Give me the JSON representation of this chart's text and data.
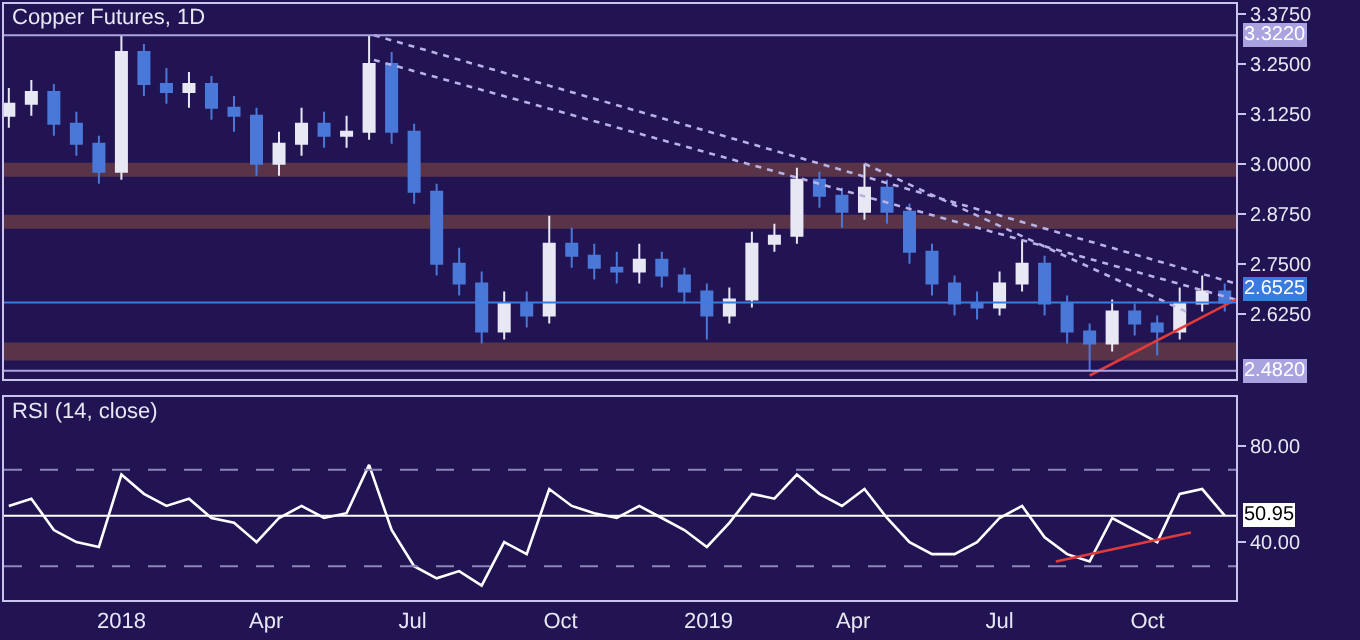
{
  "chart_data": [
    {
      "type": "candlestick",
      "title": "Copper Futures, 1D",
      "x": [
        "2017-10-23",
        "2017-11-06",
        "2017-11-20",
        "2017-12-04",
        "2017-12-18",
        "2018-01-01",
        "2018-01-15",
        "2018-01-29",
        "2018-02-12",
        "2018-02-26",
        "2018-03-12",
        "2018-03-26",
        "2018-04-09",
        "2018-04-23",
        "2018-05-07",
        "2018-05-21",
        "2018-06-04",
        "2018-06-18",
        "2018-07-02",
        "2018-07-16",
        "2018-07-30",
        "2018-08-13",
        "2018-08-27",
        "2018-09-10",
        "2018-09-24",
        "2018-10-08",
        "2018-10-22",
        "2018-11-05",
        "2018-11-19",
        "2018-12-03",
        "2018-12-17",
        "2018-12-31",
        "2019-01-14",
        "2019-01-28",
        "2019-02-11",
        "2019-02-25",
        "2019-03-11",
        "2019-03-25",
        "2019-04-08",
        "2019-04-22",
        "2019-05-06",
        "2019-05-20",
        "2019-06-03",
        "2019-06-17",
        "2019-07-01",
        "2019-07-15",
        "2019-07-29",
        "2019-08-12",
        "2019-08-26",
        "2019-09-09",
        "2019-09-23",
        "2019-10-07",
        "2019-10-21",
        "2019-11-04",
        "2019-11-18"
      ],
      "ohlc": [
        [
          3.12,
          3.19,
          3.09,
          3.15
        ],
        [
          3.15,
          3.21,
          3.12,
          3.18
        ],
        [
          3.18,
          3.2,
          3.07,
          3.1
        ],
        [
          3.1,
          3.13,
          3.02,
          3.05
        ],
        [
          3.05,
          3.07,
          2.95,
          2.98
        ],
        [
          2.98,
          3.322,
          2.96,
          3.28
        ],
        [
          3.28,
          3.3,
          3.17,
          3.2
        ],
        [
          3.2,
          3.24,
          3.15,
          3.18
        ],
        [
          3.18,
          3.23,
          3.14,
          3.2
        ],
        [
          3.2,
          3.22,
          3.11,
          3.14
        ],
        [
          3.14,
          3.17,
          3.08,
          3.12
        ],
        [
          3.12,
          3.14,
          2.97,
          3.0
        ],
        [
          3.0,
          3.08,
          2.97,
          3.05
        ],
        [
          3.05,
          3.14,
          3.02,
          3.1
        ],
        [
          3.1,
          3.13,
          3.04,
          3.07
        ],
        [
          3.07,
          3.12,
          3.04,
          3.08
        ],
        [
          3.08,
          3.32,
          3.06,
          3.25
        ],
        [
          3.25,
          3.28,
          3.05,
          3.08
        ],
        [
          3.08,
          3.1,
          2.9,
          2.93
        ],
        [
          2.93,
          2.95,
          2.72,
          2.75
        ],
        [
          2.75,
          2.79,
          2.67,
          2.7
        ],
        [
          2.7,
          2.73,
          2.55,
          2.58
        ],
        [
          2.58,
          2.68,
          2.56,
          2.65
        ],
        [
          2.65,
          2.68,
          2.59,
          2.62
        ],
        [
          2.62,
          2.87,
          2.6,
          2.8
        ],
        [
          2.8,
          2.84,
          2.74,
          2.77
        ],
        [
          2.77,
          2.8,
          2.71,
          2.74
        ],
        [
          2.74,
          2.78,
          2.7,
          2.73
        ],
        [
          2.73,
          2.8,
          2.7,
          2.76
        ],
        [
          2.76,
          2.78,
          2.69,
          2.72
        ],
        [
          2.72,
          2.74,
          2.65,
          2.68
        ],
        [
          2.68,
          2.7,
          2.56,
          2.62
        ],
        [
          2.62,
          2.69,
          2.6,
          2.66
        ],
        [
          2.66,
          2.83,
          2.64,
          2.8
        ],
        [
          2.8,
          2.85,
          2.78,
          2.82
        ],
        [
          2.82,
          2.99,
          2.8,
          2.96
        ],
        [
          2.96,
          2.98,
          2.89,
          2.92
        ],
        [
          2.92,
          2.94,
          2.84,
          2.88
        ],
        [
          2.88,
          3.0,
          2.86,
          2.94
        ],
        [
          2.94,
          2.96,
          2.85,
          2.88
        ],
        [
          2.88,
          2.9,
          2.75,
          2.78
        ],
        [
          2.78,
          2.8,
          2.67,
          2.7
        ],
        [
          2.7,
          2.72,
          2.62,
          2.65
        ],
        [
          2.65,
          2.68,
          2.61,
          2.64
        ],
        [
          2.64,
          2.73,
          2.62,
          2.7
        ],
        [
          2.7,
          2.81,
          2.68,
          2.75
        ],
        [
          2.75,
          2.77,
          2.62,
          2.65
        ],
        [
          2.65,
          2.67,
          2.55,
          2.58
        ],
        [
          2.58,
          2.6,
          2.482,
          2.55
        ],
        [
          2.55,
          2.66,
          2.53,
          2.63
        ],
        [
          2.63,
          2.65,
          2.57,
          2.6
        ],
        [
          2.6,
          2.62,
          2.52,
          2.58
        ],
        [
          2.58,
          2.69,
          2.56,
          2.65
        ],
        [
          2.65,
          2.72,
          2.63,
          2.68
        ],
        [
          2.68,
          2.7,
          2.63,
          2.6525
        ]
      ],
      "colors": [
        "#e8e8f5",
        "#e8e8f5",
        "#4a78d8",
        "#4a78d8",
        "#4a78d8",
        "#e8e8f5",
        "#4a78d8",
        "#4a78d8",
        "#e8e8f5",
        "#4a78d8",
        "#4a78d8",
        "#4a78d8",
        "#e8e8f5",
        "#e8e8f5",
        "#4a78d8",
        "#e8e8f5",
        "#e8e8f5",
        "#4a78d8",
        "#4a78d8",
        "#4a78d8",
        "#4a78d8",
        "#4a78d8",
        "#e8e8f5",
        "#4a78d8",
        "#e8e8f5",
        "#4a78d8",
        "#4a78d8",
        "#4a78d8",
        "#e8e8f5",
        "#4a78d8",
        "#4a78d8",
        "#4a78d8",
        "#e8e8f5",
        "#e8e8f5",
        "#e8e8f5",
        "#e8e8f5",
        "#4a78d8",
        "#4a78d8",
        "#e8e8f5",
        "#4a78d8",
        "#4a78d8",
        "#4a78d8",
        "#4a78d8",
        "#4a78d8",
        "#e8e8f5",
        "#e8e8f5",
        "#4a78d8",
        "#4a78d8",
        "#4a78d8",
        "#e8e8f5",
        "#4a78d8",
        "#4a78d8",
        "#e8e8f5",
        "#e8e8f5",
        "#4a78d8"
      ],
      "series": [
        {
          "type": "line",
          "x": [
            "2018-06-07",
            "2019-11-25"
          ],
          "values": [
            3.322,
            2.7
          ],
          "color": "#b8b2e6",
          "line_style": "dotted"
        },
        {
          "type": "line",
          "x": [
            "2018-06-07",
            "2019-11-25"
          ],
          "values": [
            3.26,
            2.66
          ],
          "color": "#b8b2e6",
          "line_style": "dotted"
        },
        {
          "type": "line",
          "x": [
            "2019-04-08",
            "2019-10-25"
          ],
          "values": [
            3.0,
            2.63
          ],
          "color": "#b8b2e6",
          "line_style": "dotted"
        },
        {
          "type": "line",
          "x": [
            "2019-08-26",
            "2019-11-25"
          ],
          "values": [
            2.47,
            2.66
          ],
          "color": "#e03a3a",
          "line_style": "solid"
        }
      ],
      "bands": [
        {
          "axis": "y",
          "from": 2.97,
          "to": 3.0,
          "color": "#c0703a"
        },
        {
          "axis": "y",
          "from": 2.84,
          "to": 2.87,
          "color": "#c0703a"
        },
        {
          "axis": "y",
          "from": 2.51,
          "to": 2.55,
          "color": "#c0703a"
        }
      ],
      "ref_lines": [
        {
          "axis": "y",
          "value": 3.322,
          "label": "3.3220",
          "color": "#a9a3e0"
        },
        {
          "axis": "y",
          "value": 2.482,
          "label": "2.4820",
          "color": "#a9a3e0"
        },
        {
          "axis": "y",
          "value": 2.6525,
          "label": "2.6525",
          "color": "#3a7be0"
        }
      ],
      "xlim": [
        "2017-10-20",
        "2019-11-25"
      ],
      "ylim": [
        2.46,
        3.4
      ],
      "yticks": [
        {
          "value": 2.625,
          "label": "2.6250"
        },
        {
          "value": 2.75,
          "label": "2.7500"
        },
        {
          "value": 2.875,
          "label": "2.8750"
        },
        {
          "value": 3.0,
          "label": "3.0000"
        },
        {
          "value": 3.125,
          "label": "3.1250"
        },
        {
          "value": 3.25,
          "label": "3.2500"
        },
        {
          "value": 3.375,
          "label": "3.3750"
        }
      ],
      "tick_labels": "y",
      "grid": false
    },
    {
      "type": "line",
      "title": "RSI (14, close)",
      "x": [
        "2017-10-23",
        "2017-11-06",
        "2017-11-20",
        "2017-12-04",
        "2017-12-18",
        "2018-01-01",
        "2018-01-15",
        "2018-01-29",
        "2018-02-12",
        "2018-02-26",
        "2018-03-12",
        "2018-03-26",
        "2018-04-09",
        "2018-04-23",
        "2018-05-07",
        "2018-05-21",
        "2018-06-04",
        "2018-06-18",
        "2018-07-02",
        "2018-07-16",
        "2018-07-30",
        "2018-08-13",
        "2018-08-27",
        "2018-09-10",
        "2018-09-24",
        "2018-10-08",
        "2018-10-22",
        "2018-11-05",
        "2018-11-19",
        "2018-12-03",
        "2018-12-17",
        "2018-12-31",
        "2019-01-14",
        "2019-01-28",
        "2019-02-11",
        "2019-02-25",
        "2019-03-11",
        "2019-03-25",
        "2019-04-08",
        "2019-04-22",
        "2019-05-06",
        "2019-05-20",
        "2019-06-03",
        "2019-06-17",
        "2019-07-01",
        "2019-07-15",
        "2019-07-29",
        "2019-08-12",
        "2019-08-26",
        "2019-09-09",
        "2019-09-23",
        "2019-10-07",
        "2019-10-21",
        "2019-11-04",
        "2019-11-18"
      ],
      "series": [
        {
          "values": [
            55,
            58,
            45,
            40,
            38,
            68,
            60,
            55,
            58,
            50,
            48,
            40,
            50,
            55,
            50,
            52,
            72,
            45,
            30,
            25,
            28,
            22,
            40,
            35,
            62,
            55,
            52,
            50,
            55,
            50,
            45,
            38,
            48,
            60,
            58,
            68,
            60,
            55,
            62,
            50,
            40,
            35,
            35,
            40,
            50,
            55,
            42,
            35,
            32,
            50,
            45,
            40,
            60,
            62,
            50.95
          ],
          "color": "#ffffff"
        },
        {
          "type": "line",
          "x": [
            "2019-08-05",
            "2019-10-28"
          ],
          "values": [
            32,
            44
          ],
          "color": "#e03a3a"
        }
      ],
      "ref_lines": [
        {
          "axis": "y",
          "value": 70,
          "line_style": "dashed",
          "color": "#8c86b8"
        },
        {
          "axis": "y",
          "value": 30,
          "line_style": "dashed",
          "color": "#8c86b8"
        },
        {
          "axis": "y",
          "value": 50.95,
          "label": "50.95",
          "color": "#ffffff"
        }
      ],
      "xlim": [
        "2017-10-20",
        "2019-11-25"
      ],
      "xticks": [
        {
          "value": "2018-01-01",
          "label": "2018"
        },
        {
          "value": "2018-04-01",
          "label": "Apr"
        },
        {
          "value": "2018-07-01",
          "label": "Jul"
        },
        {
          "value": "2018-10-01",
          "label": "Oct"
        },
        {
          "value": "2019-01-01",
          "label": "2019"
        },
        {
          "value": "2019-04-01",
          "label": "Apr"
        },
        {
          "value": "2019-07-01",
          "label": "Jul"
        },
        {
          "value": "2019-10-01",
          "label": "Oct"
        }
      ],
      "ylim": [
        16,
        100
      ],
      "yticks": [
        {
          "value": 40,
          "label": "40.00"
        },
        {
          "value": 80,
          "label": "80.00"
        }
      ],
      "grid": false
    }
  ]
}
